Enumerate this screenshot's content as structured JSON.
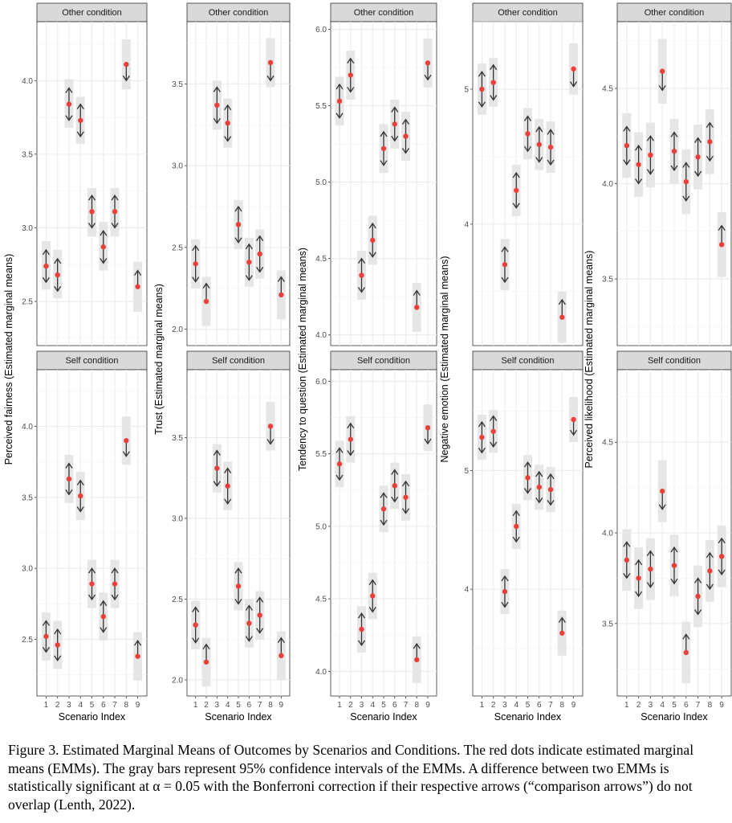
{
  "caption": "Figure 3. Estimated Marginal Means of Outcomes by Scenarios and Conditions. The red dots indicate estimated marginal means (EMMs). The gray bars represent 95% confidence intervals of the EMMs. A difference between two EMMs is statistically significant at α = 0.05 with the Bonferroni correction if their respective arrows (“comparison arrows”) do not overlap (Lenth, 2022).",
  "colors": {
    "point": "#e8403a",
    "ci_bar": "#e6e6e6",
    "arrow": "#333333",
    "strip": "#d9d9d9",
    "grid": "#ebebeb"
  },
  "chart_data": [
    {
      "type": "scatter",
      "ylabel": "Perceived fairness (Estimated marginal means)",
      "xlabel": "Scenario Index",
      "x": [
        1,
        2,
        3,
        4,
        5,
        6,
        7,
        8,
        9
      ],
      "panels": [
        {
          "strip": "Other condition",
          "ylim": [
            2.2,
            4.4
          ],
          "yticks": [
            2.5,
            3.0,
            3.5,
            4.0
          ],
          "yticklabels": [
            "2.5",
            "3.0",
            "3.5",
            "4.0"
          ],
          "emm": [
            2.74,
            2.68,
            3.84,
            3.73,
            3.11,
            2.87,
            3.11,
            4.11,
            2.6
          ],
          "ci_low": [
            2.58,
            2.52,
            3.68,
            3.57,
            2.94,
            2.71,
            2.94,
            3.94,
            2.43
          ],
          "ci_high": [
            2.91,
            2.85,
            4.01,
            3.89,
            3.27,
            3.04,
            3.27,
            4.28,
            2.77
          ],
          "arrow_low": [
            2.63,
            2.57,
            3.73,
            3.62,
            3.0,
            2.76,
            3.0,
            4.0,
            2.6
          ],
          "arrow_high": [
            2.85,
            2.79,
            3.95,
            3.84,
            3.22,
            2.98,
            3.22,
            4.11,
            2.71
          ]
        },
        {
          "strip": "Self condition",
          "ylim": [
            2.1,
            4.4
          ],
          "yticks": [
            2.5,
            3.0,
            3.5,
            4.0
          ],
          "yticklabels": [
            "2.5",
            "3.0",
            "3.5",
            "4.0"
          ],
          "emm": [
            2.52,
            2.46,
            3.63,
            3.51,
            2.89,
            2.66,
            2.89,
            3.9,
            2.38
          ],
          "ci_low": [
            2.35,
            2.29,
            3.46,
            3.34,
            2.72,
            2.49,
            2.72,
            3.73,
            2.21
          ],
          "ci_high": [
            2.69,
            2.63,
            3.8,
            3.68,
            3.06,
            2.83,
            3.06,
            4.07,
            2.55
          ],
          "arrow_low": [
            2.41,
            2.35,
            3.52,
            3.4,
            2.78,
            2.55,
            2.78,
            3.79,
            2.38
          ],
          "arrow_high": [
            2.63,
            2.57,
            3.74,
            3.62,
            3.0,
            2.77,
            3.0,
            3.9,
            2.49
          ]
        }
      ]
    },
    {
      "type": "scatter",
      "ylabel": "Trust (Estimated marginal means)",
      "xlabel": "Scenario Index",
      "x": [
        1,
        2,
        3,
        4,
        5,
        6,
        7,
        8,
        9
      ],
      "panels": [
        {
          "strip": "Other condition",
          "ylim": [
            1.9,
            3.88
          ],
          "yticks": [
            2.0,
            2.5,
            3.0,
            3.5
          ],
          "yticklabels": [
            "2.0",
            "2.5",
            "3.0",
            "3.5"
          ],
          "emm": [
            2.4,
            2.17,
            3.37,
            3.26,
            2.64,
            2.41,
            2.46,
            3.63,
            2.21
          ],
          "ci_low": [
            2.25,
            2.02,
            3.22,
            3.11,
            2.49,
            2.26,
            2.31,
            3.48,
            2.06
          ],
          "ci_high": [
            2.55,
            2.32,
            3.52,
            3.41,
            2.79,
            2.56,
            2.61,
            3.78,
            2.36
          ],
          "arrow_low": [
            2.29,
            2.17,
            3.26,
            3.15,
            2.53,
            2.3,
            2.35,
            3.52,
            2.21
          ],
          "arrow_high": [
            2.51,
            2.28,
            3.48,
            3.37,
            2.75,
            2.52,
            2.57,
            3.63,
            2.32
          ]
        },
        {
          "strip": "Self condition",
          "ylim": [
            1.9,
            3.92
          ],
          "yticks": [
            2.0,
            2.5,
            3.0,
            3.5
          ],
          "yticklabels": [
            "2.0",
            "2.5",
            "3.0",
            "3.5"
          ],
          "emm": [
            2.34,
            2.11,
            3.31,
            3.2,
            2.58,
            2.35,
            2.4,
            3.57,
            2.15
          ],
          "ci_low": [
            2.19,
            1.96,
            3.16,
            3.05,
            2.43,
            2.2,
            2.25,
            3.42,
            2.0
          ],
          "ci_high": [
            2.49,
            2.26,
            3.46,
            3.35,
            2.73,
            2.5,
            2.55,
            3.72,
            2.3
          ],
          "arrow_low": [
            2.23,
            2.11,
            3.2,
            3.09,
            2.47,
            2.24,
            2.29,
            3.46,
            2.15
          ],
          "arrow_high": [
            2.45,
            2.22,
            3.42,
            3.31,
            2.69,
            2.46,
            2.51,
            3.57,
            2.26
          ]
        }
      ]
    },
    {
      "type": "scatter",
      "ylabel": "Tendency to question (Estimated marginal means)",
      "xlabel": "Scenario Index",
      "x": [
        1,
        2,
        3,
        4,
        5,
        6,
        7,
        8,
        9
      ],
      "panels": [
        {
          "strip": "Other condition",
          "ylim": [
            3.93,
            6.05
          ],
          "yticks": [
            4.0,
            4.5,
            5.0,
            5.5,
            6.0
          ],
          "yticklabels": [
            "4.0",
            "4.5",
            "5.0",
            "5.5",
            "6.0"
          ],
          "emm": [
            5.53,
            5.7,
            4.39,
            4.62,
            5.22,
            5.38,
            5.3,
            4.18,
            5.78
          ],
          "ci_low": [
            5.37,
            5.54,
            4.23,
            4.46,
            5.06,
            5.22,
            5.14,
            4.02,
            5.62
          ],
          "ci_high": [
            5.69,
            5.86,
            4.55,
            4.78,
            5.38,
            5.54,
            5.46,
            4.34,
            5.94
          ],
          "arrow_low": [
            5.42,
            5.59,
            4.28,
            4.51,
            5.11,
            5.27,
            5.19,
            4.18,
            5.67
          ],
          "arrow_high": [
            5.64,
            5.81,
            4.5,
            4.73,
            5.33,
            5.49,
            5.41,
            4.29,
            5.78
          ]
        },
        {
          "strip": "Self condition",
          "ylim": [
            3.83,
            6.08
          ],
          "yticks": [
            4.0,
            4.5,
            5.0,
            5.5,
            6.0
          ],
          "yticklabels": [
            "4.0",
            "4.5",
            "5.0",
            "5.5",
            "6.0"
          ],
          "emm": [
            5.43,
            5.6,
            4.29,
            4.52,
            5.12,
            5.28,
            5.2,
            4.08,
            5.68
          ],
          "ci_low": [
            5.27,
            5.44,
            4.13,
            4.36,
            4.96,
            5.12,
            5.04,
            3.92,
            5.52
          ],
          "ci_high": [
            5.59,
            5.76,
            4.45,
            4.68,
            5.28,
            5.44,
            5.36,
            4.24,
            5.84
          ],
          "arrow_low": [
            5.32,
            5.49,
            4.18,
            4.41,
            5.01,
            5.17,
            5.09,
            4.08,
            5.57
          ],
          "arrow_high": [
            5.54,
            5.71,
            4.4,
            4.63,
            5.23,
            5.39,
            5.31,
            4.19,
            5.68
          ]
        }
      ]
    },
    {
      "type": "scatter",
      "ylabel": "Negative emotion (Estimated marginal means)",
      "xlabel": "Scenario Index",
      "x": [
        1,
        2,
        3,
        4,
        5,
        6,
        7,
        8,
        9
      ],
      "panels": [
        {
          "strip": "Other condition",
          "ylim": [
            3.1,
            5.5
          ],
          "yticks": [
            4,
            5
          ],
          "yticklabels": [
            "4",
            "5"
          ],
          "emm": [
            5.0,
            5.05,
            3.7,
            4.25,
            4.67,
            4.59,
            4.57,
            3.31,
            5.15
          ],
          "ci_low": [
            4.81,
            4.87,
            3.51,
            4.06,
            4.48,
            4.4,
            4.38,
            3.12,
            4.96
          ],
          "ci_high": [
            5.19,
            5.23,
            3.89,
            4.44,
            4.86,
            4.78,
            4.76,
            3.5,
            5.34
          ],
          "arrow_low": [
            4.87,
            4.92,
            3.57,
            4.12,
            4.54,
            4.46,
            4.44,
            3.31,
            5.02
          ],
          "arrow_high": [
            5.13,
            5.18,
            3.83,
            4.38,
            4.8,
            4.72,
            4.7,
            3.44,
            5.15
          ]
        },
        {
          "strip": "Self condition",
          "ylim": [
            3.1,
            5.85
          ],
          "yticks": [
            4,
            5
          ],
          "yticklabels": [
            "4",
            "5"
          ],
          "emm": [
            5.28,
            5.33,
            3.98,
            4.53,
            4.94,
            4.86,
            4.84,
            3.63,
            5.43
          ],
          "ci_low": [
            5.09,
            5.15,
            3.79,
            4.34,
            4.75,
            4.67,
            4.65,
            3.44,
            5.24
          ],
          "ci_high": [
            5.47,
            5.51,
            4.17,
            4.72,
            5.13,
            5.05,
            5.03,
            3.82,
            5.62
          ],
          "arrow_low": [
            5.15,
            5.2,
            3.85,
            4.4,
            4.81,
            4.73,
            4.71,
            3.63,
            5.3
          ],
          "arrow_high": [
            5.41,
            5.46,
            4.11,
            4.66,
            5.07,
            4.99,
            4.97,
            3.76,
            5.43
          ]
        }
      ]
    },
    {
      "type": "scatter",
      "ylabel": "Perceived likelihood (Estimated marginal means)",
      "xlabel": "Scenario Index",
      "x": [
        1,
        2,
        3,
        4,
        5,
        6,
        7,
        8,
        9
      ],
      "panels": [
        {
          "strip": "Other condition",
          "ylim": [
            3.15,
            4.85
          ],
          "yticks": [
            3.5,
            4.0,
            4.5
          ],
          "yticklabels": [
            "3.5",
            "4.0",
            "4.5"
          ],
          "emm": [
            4.2,
            4.1,
            4.15,
            4.59,
            4.17,
            4.01,
            4.14,
            4.22,
            3.68
          ],
          "ci_low": [
            4.03,
            3.93,
            3.98,
            4.42,
            4.0,
            3.84,
            3.97,
            4.05,
            3.51
          ],
          "ci_high": [
            4.37,
            4.27,
            4.32,
            4.76,
            4.34,
            4.18,
            4.31,
            4.39,
            3.85
          ],
          "arrow_low": [
            4.1,
            4.0,
            4.05,
            4.49,
            4.07,
            3.91,
            4.04,
            4.12,
            3.68
          ],
          "arrow_high": [
            4.3,
            4.2,
            4.25,
            4.59,
            4.27,
            4.11,
            4.24,
            4.32,
            3.78
          ]
        },
        {
          "strip": "Self condition",
          "ylim": [
            3.1,
            4.9
          ],
          "yticks": [
            3.5,
            4.0,
            4.5
          ],
          "yticklabels": [
            "3.5",
            "4.0",
            "4.5"
          ],
          "emm": [
            3.85,
            3.75,
            3.8,
            4.23,
            3.82,
            3.34,
            3.65,
            3.79,
            3.87
          ],
          "ci_low": [
            3.68,
            3.58,
            3.63,
            4.06,
            3.65,
            3.17,
            3.48,
            3.62,
            3.7
          ],
          "ci_high": [
            4.02,
            3.92,
            3.97,
            4.4,
            3.99,
            3.51,
            3.82,
            3.96,
            4.04
          ],
          "arrow_low": [
            3.75,
            3.65,
            3.7,
            4.13,
            3.72,
            3.34,
            3.55,
            3.69,
            3.77
          ],
          "arrow_high": [
            3.95,
            3.85,
            3.9,
            4.23,
            3.92,
            3.44,
            3.75,
            3.89,
            3.97
          ]
        }
      ]
    }
  ]
}
